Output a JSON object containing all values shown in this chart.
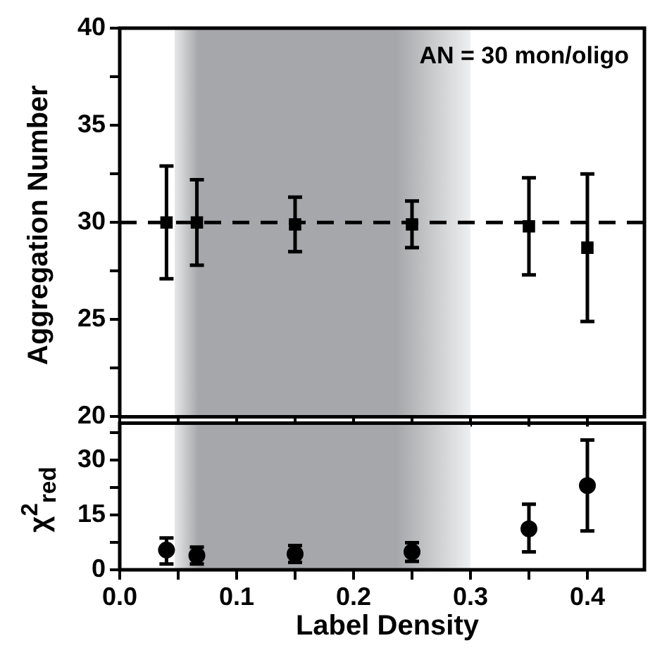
{
  "chart_data": [
    {
      "type": "scatter",
      "ylabel": "Aggregation Number",
      "annotations": [
        "AN = 30 mon/oligo"
      ],
      "x": [
        0.04,
        0.066,
        0.15,
        0.25,
        0.35,
        0.4
      ],
      "series": [
        {
          "color": "#000000",
          "values": [
            30.0,
            30.0,
            29.9,
            29.9,
            29.8,
            28.7
          ],
          "errors": [
            [
              27.1,
              32.9
            ],
            [
              27.8,
              32.2
            ],
            [
              28.5,
              31.3
            ],
            [
              28.7,
              31.1
            ],
            [
              27.3,
              32.3
            ],
            [
              24.9,
              32.5
            ]
          ]
        }
      ],
      "marker": "square",
      "xlim": [
        0,
        0.45
      ],
      "xticks": [
        {
          "value": 0,
          "label": null
        },
        {
          "value": 0.05,
          "label": null
        },
        {
          "value": 0.1,
          "label": null
        },
        {
          "value": 0.15,
          "label": null
        },
        {
          "value": 0.2,
          "label": null
        },
        {
          "value": 0.25,
          "label": null
        },
        {
          "value": 0.3,
          "label": null
        },
        {
          "value": 0.35,
          "label": null
        },
        {
          "value": 0.4,
          "label": null
        }
      ],
      "ylim": [
        20,
        40
      ],
      "yticks": [
        20,
        {
          "value": 22.5,
          "label": null
        },
        25,
        {
          "value": 27.5,
          "label": null
        },
        30,
        {
          "value": 32.5,
          "label": null
        },
        35,
        {
          "value": 37.5,
          "label": null
        },
        40
      ],
      "tick_labels": "y",
      "grid": false,
      "legend": false,
      "ref_lines": [
        {
          "axis": "y",
          "value": 30,
          "line_style": "dashed",
          "color": "#000000"
        }
      ],
      "bands": [
        {
          "axis": "x",
          "from": 0.047,
          "to": 0.3,
          "color": "#a6a7aa"
        }
      ]
    },
    {
      "type": "scatter",
      "xlabel": "Label Density",
      "ylabel": "χ$^{2}$$_{red}$",
      "x": [
        0.04,
        0.066,
        0.15,
        0.25,
        0.35,
        0.4
      ],
      "series": [
        {
          "color": "#000000",
          "values": [
            5.4,
            3.9,
            4.3,
            4.9,
            11.2,
            23.0
          ],
          "errors": [
            [
              1.6,
              8.7
            ],
            [
              1.6,
              6.2
            ],
            [
              2.0,
              6.6
            ],
            [
              2.3,
              7.4
            ],
            [
              4.9,
              17.9
            ],
            [
              10.6,
              35.4
            ]
          ]
        }
      ],
      "marker": "circle",
      "xlim": [
        0,
        0.45
      ],
      "xticks": [
        "0.0",
        {
          "value": 0.05,
          "label": null
        },
        0.1,
        {
          "value": 0.15,
          "label": null
        },
        0.2,
        {
          "value": 0.25,
          "label": null
        },
        0.3,
        {
          "value": 0.35,
          "label": null
        },
        0.4
      ],
      "ylim": [
        0,
        40
      ],
      "yticks": [
        0,
        {
          "value": 7.5,
          "label": null
        },
        15,
        {
          "value": 22.5,
          "label": null
        },
        30,
        {
          "value": 37.5,
          "label": null
        }
      ],
      "grid": false,
      "legend": false,
      "bands": [
        {
          "axis": "x",
          "from": 0.047,
          "to": 0.3,
          "color": "#a6a7aa"
        }
      ]
    }
  ]
}
